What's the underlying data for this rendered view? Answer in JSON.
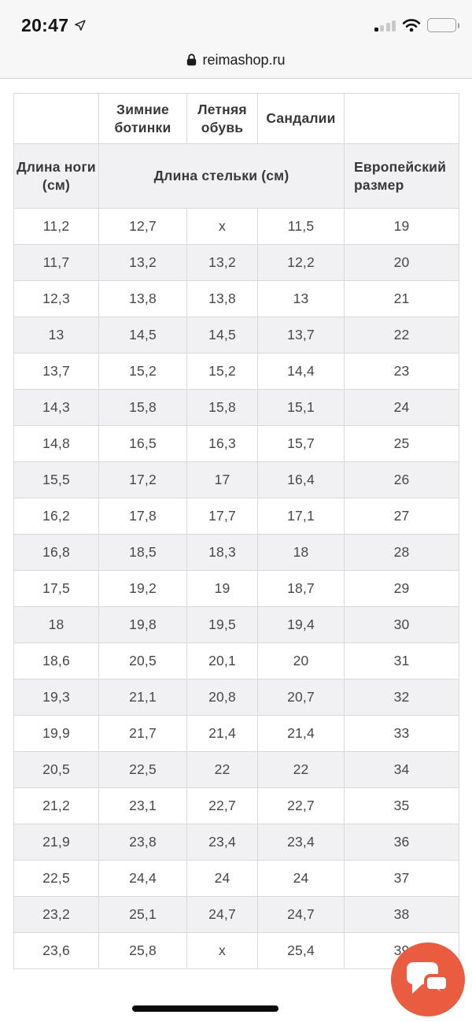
{
  "status_bar": {
    "time": "20:47",
    "icons": {
      "location": "navigation-arrow-outline",
      "signal": "cellular-signal-1-of-4-bars",
      "wifi": "wifi-full",
      "battery": "battery-about-40-percent"
    }
  },
  "url_bar": {
    "lock_icon": "padlock",
    "domain": "reimashop.ru"
  },
  "size_table": {
    "category_headers": {
      "winter_boots": "Зимние ботинки",
      "summer_shoes": "Летняя обувь",
      "sandals": "Сандалии"
    },
    "measure_headers": {
      "foot_length": "Длина ноги (см)",
      "insole_length": "Длина стельки (см)",
      "eu_size": "Европейский размер"
    },
    "rows": [
      [
        "11,2",
        "12,7",
        "x",
        "11,5",
        "19"
      ],
      [
        "11,7",
        "13,2",
        "13,2",
        "12,2",
        "20"
      ],
      [
        "12,3",
        "13,8",
        "13,8",
        "13",
        "21"
      ],
      [
        "13",
        "14,5",
        "14,5",
        "13,7",
        "22"
      ],
      [
        "13,7",
        "15,2",
        "15,2",
        "14,4",
        "23"
      ],
      [
        "14,3",
        "15,8",
        "15,8",
        "15,1",
        "24"
      ],
      [
        "14,8",
        "16,5",
        "16,3",
        "15,7",
        "25"
      ],
      [
        "15,5",
        "17,2",
        "17",
        "16,4",
        "26"
      ],
      [
        "16,2",
        "17,8",
        "17,7",
        "17,1",
        "27"
      ],
      [
        "16,8",
        "18,5",
        "18,3",
        "18",
        "28"
      ],
      [
        "17,5",
        "19,2",
        "19",
        "18,7",
        "29"
      ],
      [
        "18",
        "19,8",
        "19,5",
        "19,4",
        "30"
      ],
      [
        "18,6",
        "20,5",
        "20,1",
        "20",
        "31"
      ],
      [
        "19,3",
        "21,1",
        "20,8",
        "20,7",
        "32"
      ],
      [
        "19,9",
        "21,7",
        "21,4",
        "21,4",
        "33"
      ],
      [
        "20,5",
        "22,5",
        "22",
        "22",
        "34"
      ],
      [
        "21,2",
        "23,1",
        "22,7",
        "22,7",
        "35"
      ],
      [
        "21,9",
        "23,8",
        "23,4",
        "23,4",
        "36"
      ],
      [
        "22,5",
        "24,4",
        "24",
        "24",
        "37"
      ],
      [
        "23,2",
        "25,1",
        "24,7",
        "24,7",
        "38"
      ],
      [
        "23,6",
        "25,8",
        "x",
        "25,4",
        "39"
      ]
    ]
  },
  "chat_button": {
    "icon": "chat-bubbles"
  },
  "home_indicator": {
    "icon": "home-indicator-bar"
  },
  "colors": {
    "accent_orange": "#e95c3f",
    "row_alt_gray": "#f1f1f3",
    "table_border": "#d9d9db",
    "top_bar_bg": "#f7f7f8",
    "text_dark": "#38383b"
  }
}
